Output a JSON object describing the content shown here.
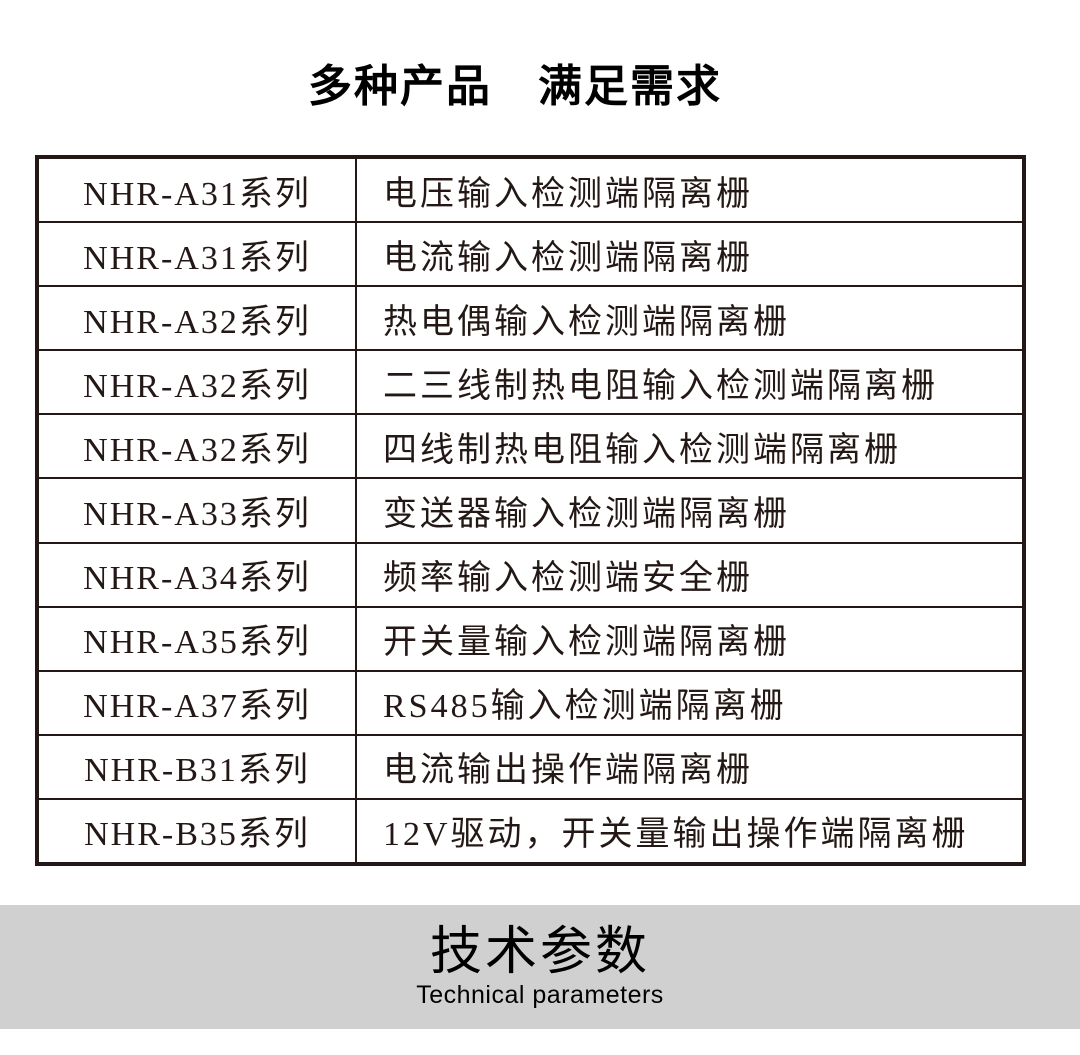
{
  "page": {
    "title": "多种产品　满足需求",
    "colors": {
      "text": "#231815",
      "border": "#231815",
      "background": "#ffffff",
      "banner_bg": "#d0d0d0"
    }
  },
  "product_table": {
    "rows": [
      {
        "series": "NHR-A31系列",
        "description": "电压输入检测端隔离栅"
      },
      {
        "series": "NHR-A31系列",
        "description": "电流输入检测端隔离栅"
      },
      {
        "series": "NHR-A32系列",
        "description": "热电偶输入检测端隔离栅"
      },
      {
        "series": "NHR-A32系列",
        "description": "二三线制热电阻输入检测端隔离栅"
      },
      {
        "series": "NHR-A32系列",
        "description": "四线制热电阻输入检测端隔离栅"
      },
      {
        "series": "NHR-A33系列",
        "description": "变送器输入检测端隔离栅"
      },
      {
        "series": "NHR-A34系列",
        "description": "频率输入检测端安全栅"
      },
      {
        "series": "NHR-A35系列",
        "description": "开关量输入检测端隔离栅"
      },
      {
        "series": "NHR-A37系列",
        "description": "RS485输入检测端隔离栅"
      },
      {
        "series": "NHR-B31系列",
        "description": "电流输出操作端隔离栅"
      },
      {
        "series": "NHR-B35系列",
        "description": "12V驱动，开关量输出操作端隔离栅"
      }
    ]
  },
  "banner": {
    "title": "技术参数",
    "subtitle": "Technical parameters"
  }
}
